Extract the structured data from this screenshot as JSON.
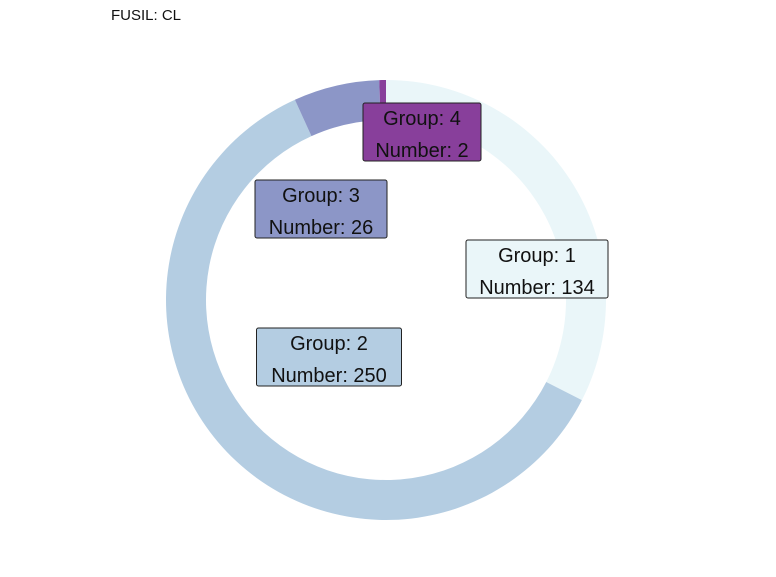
{
  "chart_data": {
    "type": "pie",
    "variant": "donut",
    "title": "FUSIL: CL",
    "group_label": "Group:",
    "value_label": "Number:",
    "segments": [
      {
        "group": "1",
        "value": 134,
        "color": "#EAF6F9"
      },
      {
        "group": "2",
        "value": 250,
        "color": "#B4CDE2"
      },
      {
        "group": "3",
        "value": 26,
        "color": "#8C96C7"
      },
      {
        "group": "4",
        "value": 2,
        "color": "#883F9B"
      }
    ]
  }
}
